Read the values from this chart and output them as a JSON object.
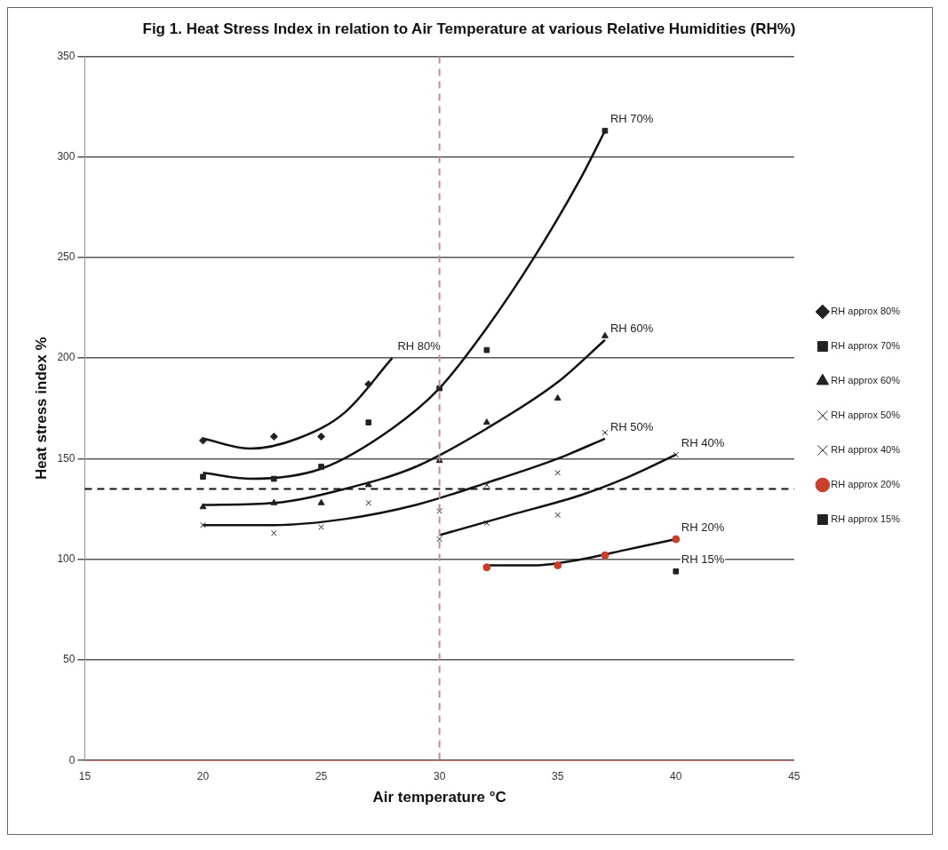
{
  "chart_data": {
    "type": "scatter",
    "title": "Fig 1. Heat Stress Index in relation to Air Temperature at various Relative Humidities (RH%)",
    "xlabel": "Air temperature °C",
    "ylabel": "Heat stress index %",
    "xlim": [
      15,
      45
    ],
    "xticks": [
      15,
      20,
      25,
      30,
      35,
      40,
      45
    ],
    "ylim": [
      0,
      350
    ],
    "yticks": [
      0,
      50,
      100,
      150,
      200,
      250,
      300,
      350
    ],
    "grid": "y",
    "legend": "right",
    "series": [
      {
        "name": "RH approx 80%",
        "color": "#222222",
        "marker": "diamond",
        "x": [
          20,
          23,
          25,
          27
        ],
        "values": [
          159,
          161,
          161,
          187
        ]
      },
      {
        "name": "RH approx 70%",
        "color": "#222222",
        "marker": "square",
        "x": [
          20,
          23,
          25,
          27,
          30,
          32,
          37
        ],
        "values": [
          141,
          140,
          146,
          168,
          185,
          204,
          313
        ]
      },
      {
        "name": "RH approx 60%",
        "color": "#222222",
        "marker": "triangle",
        "x": [
          20,
          23,
          25,
          27,
          30,
          32,
          35,
          37
        ],
        "values": [
          126,
          128,
          128,
          137,
          149,
          168,
          180,
          211
        ]
      },
      {
        "name": "RH approx 50%",
        "color": "#222222",
        "marker": "cross",
        "x": [
          20,
          23,
          25,
          27,
          30,
          32,
          35,
          37
        ],
        "values": [
          117,
          113,
          116,
          128,
          124,
          137,
          143,
          163
        ]
      },
      {
        "name": "RH approx 40%",
        "color": "#222222",
        "marker": "cross",
        "x": [
          30,
          32,
          35,
          40
        ],
        "values": [
          110,
          118,
          122,
          152
        ]
      },
      {
        "name": "RH approx 20%",
        "color": "#c8402c",
        "marker": "circle",
        "x": [
          32,
          35,
          37,
          40
        ],
        "values": [
          96,
          97,
          102,
          110
        ]
      },
      {
        "name": "RH approx 15%",
        "color": "#222222",
        "marker": "square",
        "x": [
          40
        ],
        "values": [
          94
        ]
      },
      {
        "type": "line",
        "color": "#111111",
        "line_style": "solid",
        "x": [
          20,
          22,
          24,
          26,
          28
        ],
        "values": [
          160,
          155,
          160,
          173,
          200
        ]
      },
      {
        "type": "line",
        "color": "#111111",
        "line_style": "solid",
        "x": [
          20,
          22,
          25,
          28,
          30,
          32,
          34,
          36,
          37
        ],
        "values": [
          143,
          140,
          145,
          165,
          185,
          215,
          250,
          290,
          313
        ]
      },
      {
        "type": "line",
        "color": "#111111",
        "line_style": "solid",
        "x": [
          20,
          23,
          26,
          29,
          32,
          35,
          37
        ],
        "values": [
          127,
          128,
          135,
          146,
          165,
          188,
          209
        ]
      },
      {
        "type": "line",
        "color": "#111111",
        "line_style": "solid",
        "x": [
          20,
          23,
          26,
          29,
          32,
          35,
          37
        ],
        "values": [
          117,
          117,
          120,
          127,
          138,
          150,
          160
        ]
      },
      {
        "type": "line",
        "color": "#111111",
        "line_style": "solid",
        "x": [
          30,
          33,
          36,
          38,
          40
        ],
        "values": [
          112,
          122,
          132,
          141,
          152
        ]
      },
      {
        "type": "line",
        "color": "#111111",
        "line_style": "solid",
        "x": [
          32,
          34,
          36,
          38,
          40
        ],
        "values": [
          97,
          97,
          100,
          105,
          110
        ]
      }
    ],
    "ref_lines": [
      {
        "axis": "y",
        "value": 135,
        "color": "#111111",
        "line_style": "dashed"
      },
      {
        "axis": "x",
        "value": 30,
        "color": "#c09090",
        "line_style": "dashed"
      }
    ],
    "annotations": [
      {
        "text": "RH 80%",
        "x": 28,
        "y": 200
      },
      {
        "text": "RH 70%",
        "x": 37,
        "y": 313
      },
      {
        "text": "RH 60%",
        "x": 37,
        "y": 209
      },
      {
        "text": "RH 50%",
        "x": 37,
        "y": 160
      },
      {
        "text": "RH 40%",
        "x": 40,
        "y": 152
      },
      {
        "text": "RH 20%",
        "x": 40,
        "y": 110
      },
      {
        "text": "RH 15%",
        "x": 40,
        "y": 94
      }
    ]
  }
}
